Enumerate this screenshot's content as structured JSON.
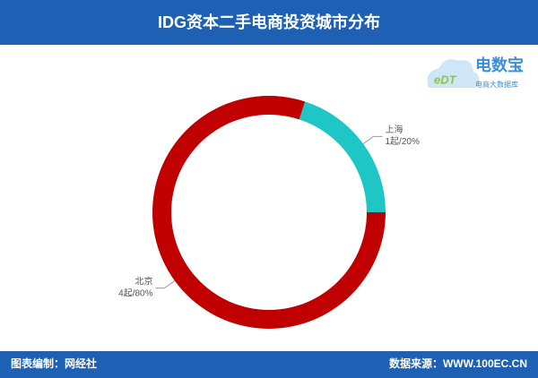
{
  "chart_data": {
    "type": "donut",
    "title": "IDG资本二手电商投资城市分布",
    "categories": [
      "上海",
      "北京"
    ],
    "values": [
      20,
      80
    ],
    "value_labels": [
      "1起/20%",
      "4起/80%"
    ],
    "colors": [
      "#1ec6c6",
      "#c00000"
    ]
  },
  "logo": {
    "mark": "eDT",
    "name": "电数宝",
    "tagline": "电商大数据库"
  },
  "footer": {
    "left": "图表编制：网经社",
    "right": "数据来源：WWW.100EC.CN"
  }
}
